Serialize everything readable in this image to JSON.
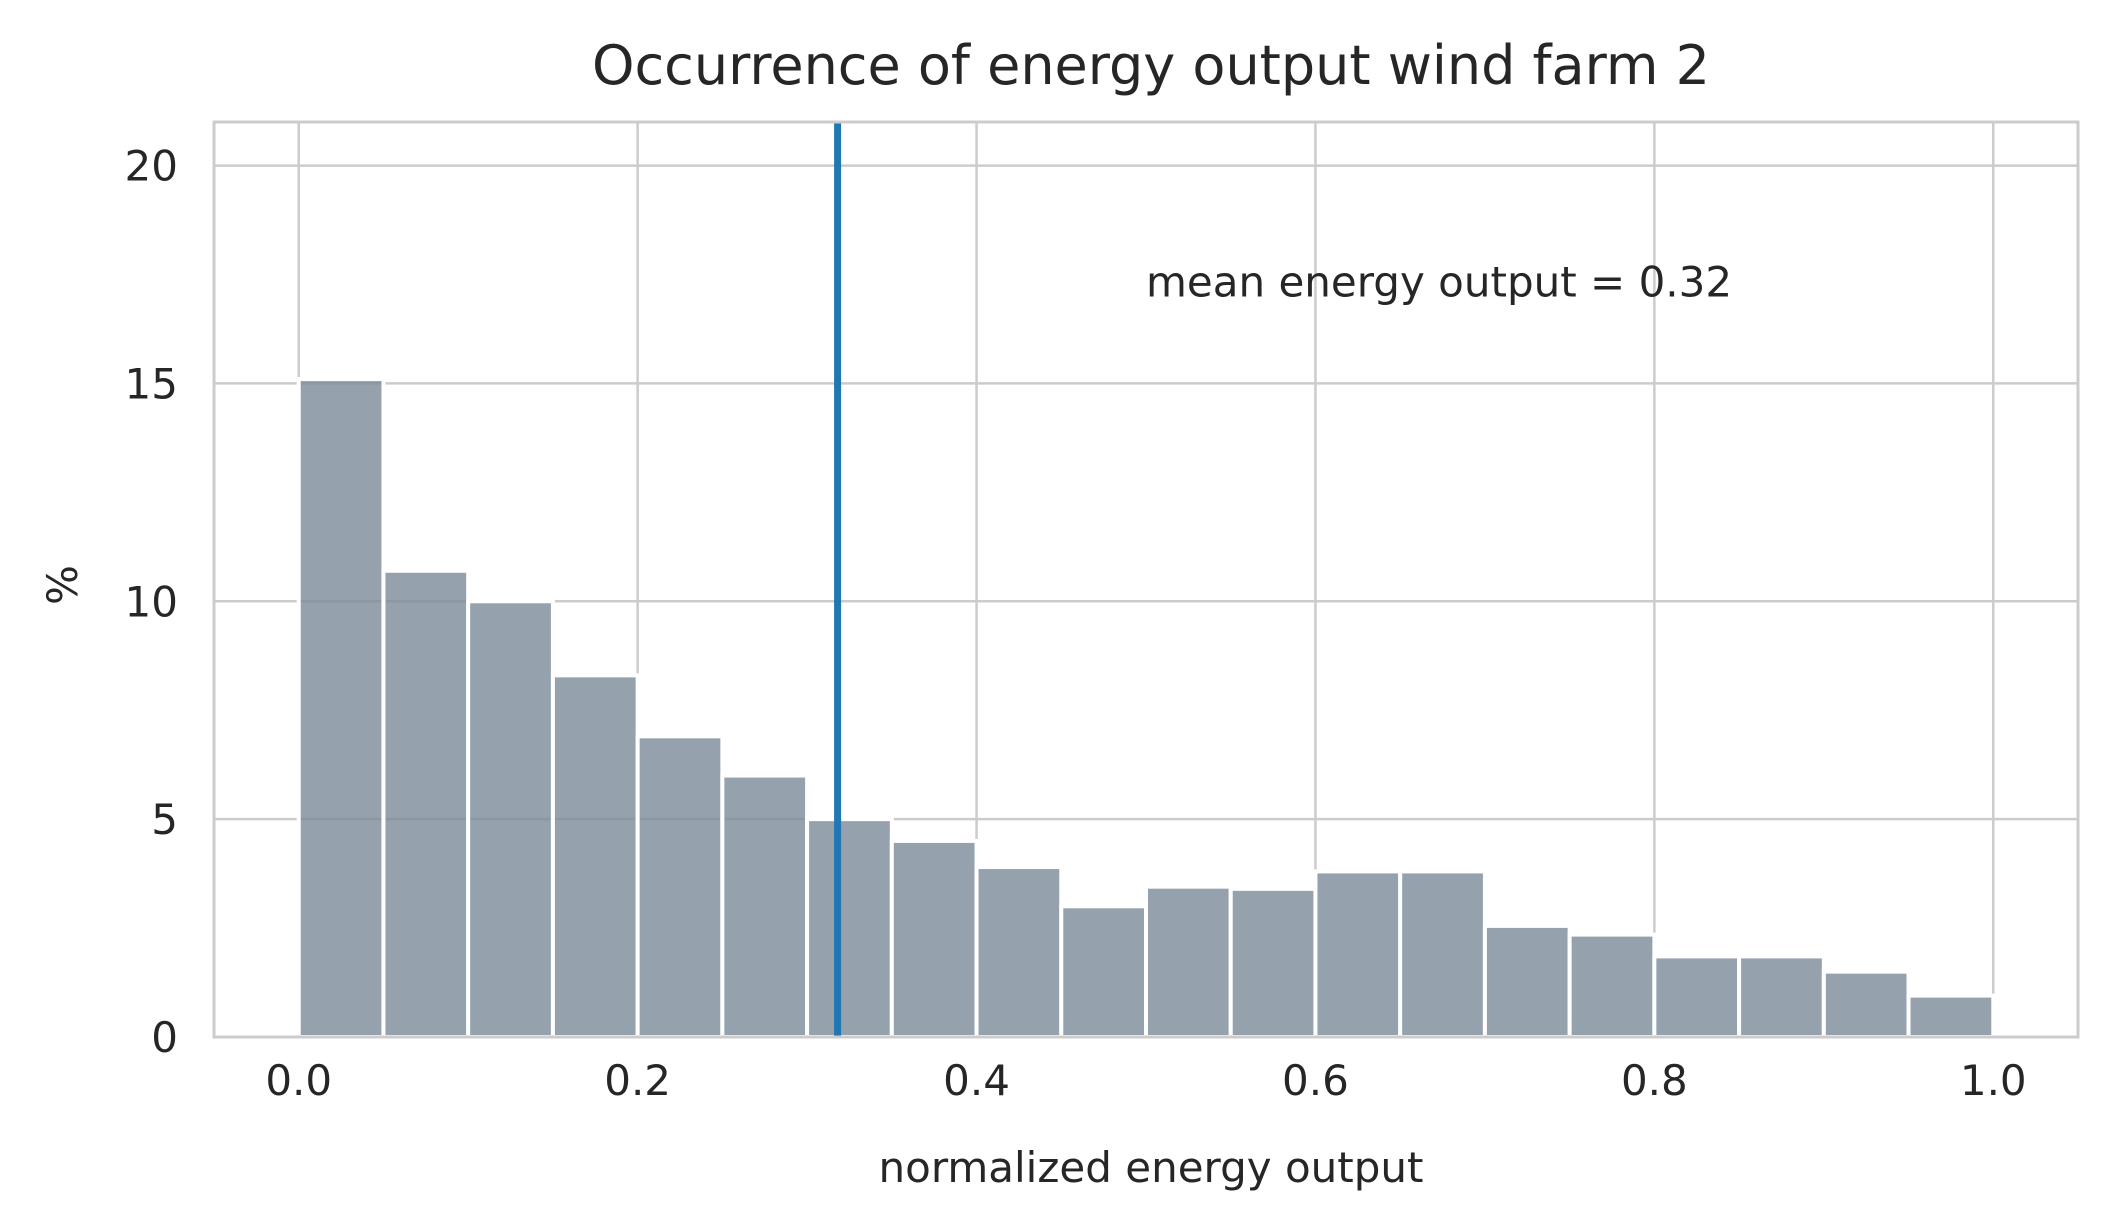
{
  "chart_data": {
    "type": "bar",
    "title": "Occurrence of energy output wind farm 2",
    "xlabel": "normalized energy output",
    "ylabel": "%",
    "xlim": [
      -0.05,
      1.05
    ],
    "ylim": [
      0,
      21
    ],
    "xticks": [
      "0.0",
      "0.2",
      "0.4",
      "0.6",
      "0.8",
      "1.0"
    ],
    "yticks": [
      "0",
      "5",
      "10",
      "15",
      "20"
    ],
    "bin_width": 0.05,
    "bin_starts": [
      0.0,
      0.05,
      0.1,
      0.15,
      0.2,
      0.25,
      0.3,
      0.35,
      0.4,
      0.45,
      0.5,
      0.55,
      0.6,
      0.65,
      0.7,
      0.75,
      0.8,
      0.85,
      0.9,
      0.95
    ],
    "values": [
      15.1,
      10.7,
      10.0,
      8.3,
      6.9,
      6.0,
      5.0,
      4.5,
      3.9,
      3.0,
      3.45,
      3.4,
      3.8,
      3.8,
      2.55,
      2.35,
      1.85,
      1.85,
      1.5,
      0.95
    ],
    "mean_line": {
      "x": 0.318,
      "label": "mean energy output = 0.32"
    },
    "annotation_position": {
      "x": 0.5,
      "y": 17
    },
    "grid": true,
    "bar_color": "#7a8a99",
    "bar_opacity": 0.8,
    "mean_line_color": "#1f77b4",
    "grid_color": "#cccccc"
  }
}
